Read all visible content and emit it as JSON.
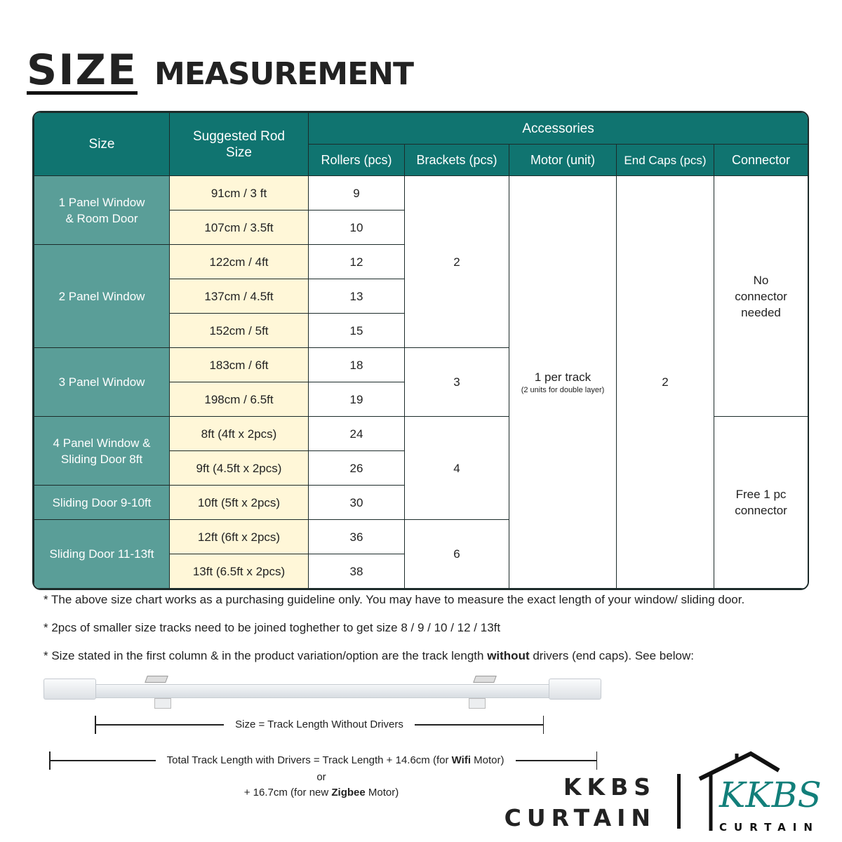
{
  "title": {
    "bold": "SIZE",
    "rest": "MEASUREMENT"
  },
  "table": {
    "headers": {
      "size": "Size",
      "rod": "Suggested Rod Size",
      "accessories": "Accessories",
      "rollers": "Rollers (pcs)",
      "brackets": "Brackets (pcs)",
      "motor": "Motor (unit)",
      "endcaps": "End Caps (pcs)",
      "connector": "Connector"
    },
    "groups": [
      "1 Panel Window & Room Door",
      "2 Panel Window",
      "3 Panel Window",
      "4 Panel Window & Sliding Door 8ft",
      "Sliding Door 9-10ft",
      "Sliding Door 11-13ft"
    ],
    "rows": [
      {
        "rod": "91cm / 3 ft",
        "rollers": "9"
      },
      {
        "rod": "107cm / 3.5ft",
        "rollers": "10"
      },
      {
        "rod": "122cm / 4ft",
        "rollers": "12"
      },
      {
        "rod": "137cm / 4.5ft",
        "rollers": "13"
      },
      {
        "rod": "152cm / 5ft",
        "rollers": "15"
      },
      {
        "rod": "183cm / 6ft",
        "rollers": "18"
      },
      {
        "rod": "198cm / 6.5ft",
        "rollers": "19"
      },
      {
        "rod": "8ft (4ft x 2pcs)",
        "rollers": "24"
      },
      {
        "rod": "9ft (4.5ft x 2pcs)",
        "rollers": "26"
      },
      {
        "rod": "10ft (5ft x 2pcs)",
        "rollers": "30"
      },
      {
        "rod": "12ft (6ft x 2pcs)",
        "rollers": "36"
      },
      {
        "rod": "13ft (6.5ft x 2pcs)",
        "rollers": "38"
      }
    ],
    "brackets": [
      "2",
      "3",
      "4",
      "6"
    ],
    "motor": {
      "main": "1 per track",
      "note": "(2 units for double layer)"
    },
    "endcaps": "2",
    "connector": [
      "No connector needed",
      "Free 1 pc connector"
    ]
  },
  "notes": [
    "* The above size chart works as a purchasing guideline only. You may have to measure the exact length of your window/ sliding door.",
    "* 2pcs of smaller size tracks need to be joined toghether to get size 8 / 9 / 10 / 12 / 13ft"
  ],
  "note3": {
    "a": "* Size stated in the first column & in the product variation/option are the track length ",
    "b": "without",
    "c": " drivers (end caps). See below:"
  },
  "diagram": {
    "size_label": "Size = Track Length Without Drivers",
    "total": {
      "a": "Total Track Length with Drivers = Track Length + 14.6cm (for ",
      "b": "Wifi",
      "c": " Motor)"
    },
    "or": "or",
    "zig": {
      "a": "+ 16.7cm (for new ",
      "b": "Zigbee",
      "c": " Motor)"
    }
  },
  "logo": {
    "line1": "KKBS",
    "line2": "CURTAIN",
    "script": "KKBS",
    "sub": "CURTAIN"
  },
  "colors": {
    "header": "#107470",
    "size_col": "#5a9e98",
    "rod_col": "#fff7d8",
    "logo_teal": "#127f7a"
  }
}
